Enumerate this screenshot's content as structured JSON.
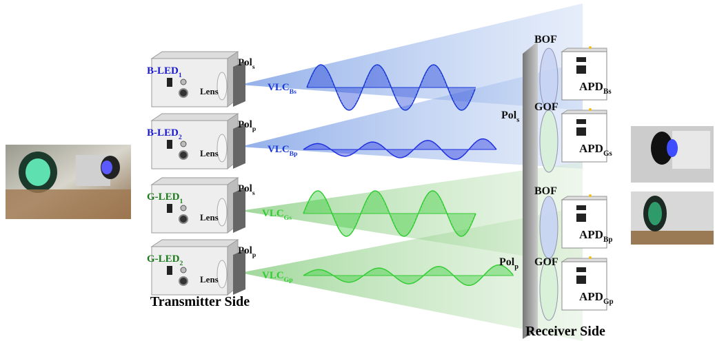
{
  "transmitter": {
    "caption": "Transmitter Side",
    "channels": [
      {
        "led": {
          "text": "B-LED",
          "sub": "1"
        },
        "pol": {
          "text": "Pol",
          "sub": "s"
        },
        "lens": "Lens",
        "signal": {
          "text": "VLC",
          "sub": "Bs"
        }
      },
      {
        "led": {
          "text": "B-LED",
          "sub": "2"
        },
        "pol": {
          "text": "Pol",
          "sub": "p"
        },
        "lens": "Lens",
        "signal": {
          "text": "VLC",
          "sub": "Bp"
        }
      },
      {
        "led": {
          "text": "G-LED",
          "sub": "1"
        },
        "pol": {
          "text": "Pol",
          "sub": "s"
        },
        "lens": "Lens",
        "signal": {
          "text": "VLC",
          "sub": "Gs"
        }
      },
      {
        "led": {
          "text": "G-LED",
          "sub": "2"
        },
        "pol": {
          "text": "Pol",
          "sub": "p"
        },
        "lens": "Lens",
        "signal": {
          "text": "VLC",
          "sub": "Gp"
        }
      }
    ]
  },
  "receiver": {
    "caption": "Receiver Side",
    "filters": [
      "BOF",
      "GOF",
      "BOF",
      "GOF"
    ],
    "polarizers": [
      {
        "text": "Pol",
        "sub": "s"
      },
      {
        "text": "Pol",
        "sub": "p"
      }
    ],
    "detectors": [
      {
        "text": "APD",
        "sub": "Bs"
      },
      {
        "text": "APD",
        "sub": "Gs"
      },
      {
        "text": "APD",
        "sub": "Bp"
      },
      {
        "text": "APD",
        "sub": "Gp"
      }
    ]
  }
}
